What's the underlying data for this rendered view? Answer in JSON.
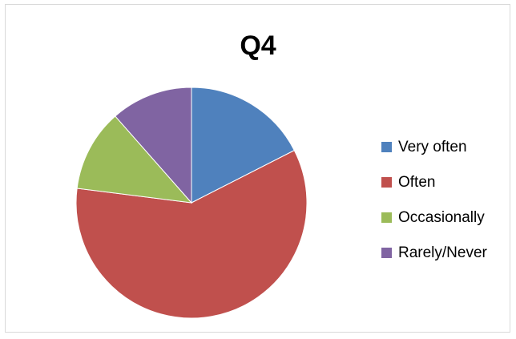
{
  "chart_data": {
    "type": "pie",
    "title": "Q4",
    "categories": [
      "Very often",
      "Often",
      "Occasionally",
      "Rarely/Never"
    ],
    "values": [
      17.5,
      59.5,
      11.5,
      11.5
    ],
    "colors": [
      "#4f81bd",
      "#c0504d",
      "#9bbb59",
      "#8064a2"
    ],
    "legend_position": "right"
  }
}
